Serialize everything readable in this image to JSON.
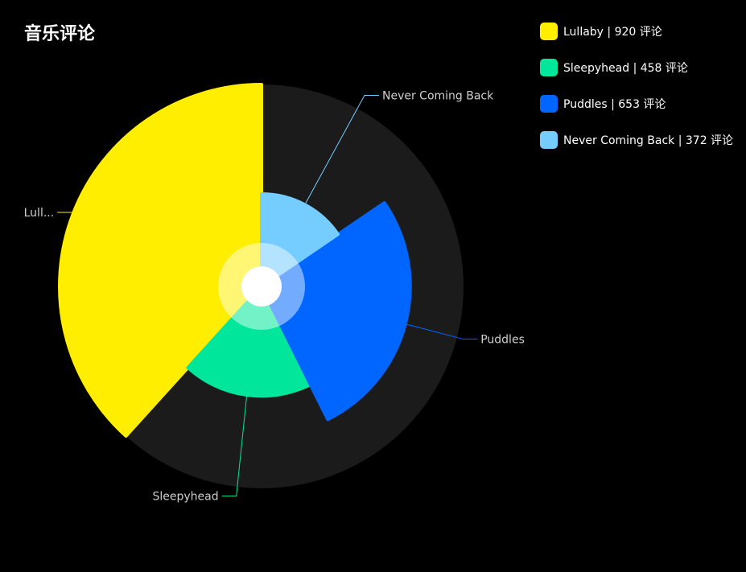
{
  "chart_data": {
    "type": "pie",
    "title": "音乐评论",
    "unit": "评论",
    "categories": [
      "Lullaby",
      "Sleepyhead",
      "Puddles",
      "Never Coming Back"
    ],
    "values": [
      920,
      458,
      653,
      372
    ],
    "slice_labels": [
      "Lull...",
      "Sleepyhead",
      "Puddles",
      "Never Coming Back"
    ],
    "legend_labels": [
      "Lullaby | 920 评论",
      "Sleepyhead | 458 评论",
      "Puddles | 653 评论",
      "Never Coming Back | 372 评论"
    ],
    "colors": [
      "#FFEE00",
      "#00E69A",
      "#0066FF",
      "#75CCFF"
    ],
    "background_ring_color": "#1b1b1b",
    "rose_type": "radius",
    "legend_position": "top-right"
  }
}
